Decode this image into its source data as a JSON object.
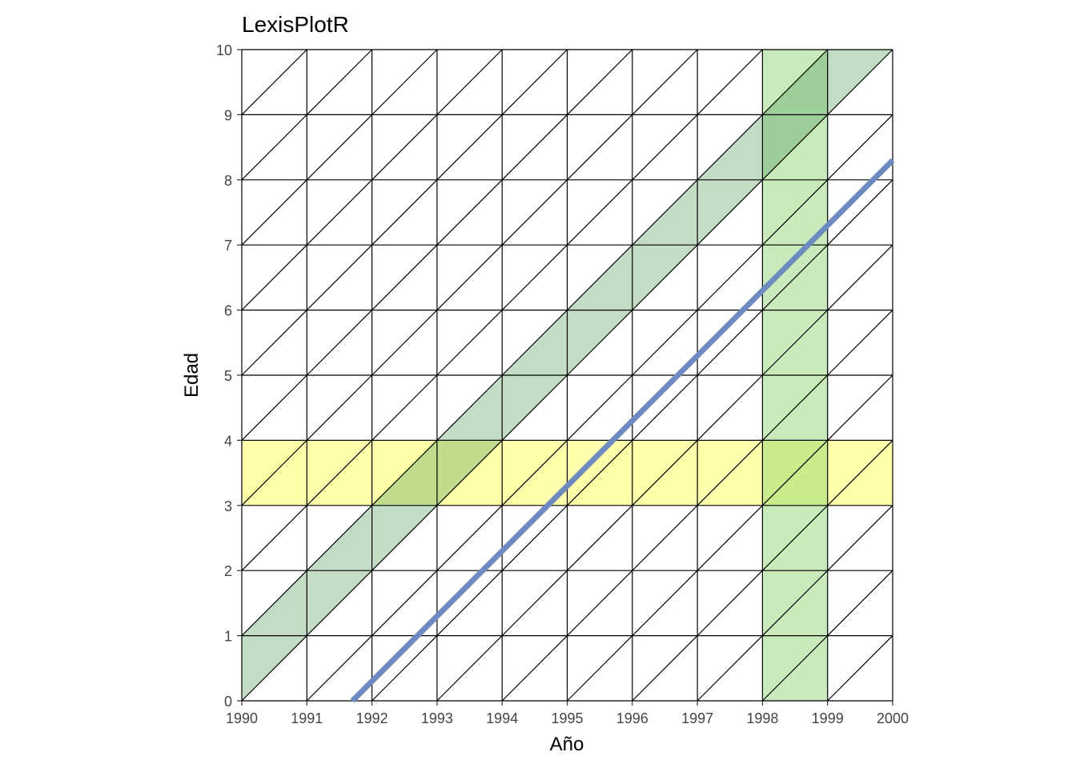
{
  "chart_data": {
    "type": "lexis",
    "title": "LexisPlotR",
    "xlabel": "Año",
    "ylabel": "Edad",
    "xlim": [
      1990,
      2000
    ],
    "ylim": [
      0,
      10
    ],
    "x_ticks": [
      "1990",
      "1991",
      "1992",
      "1993",
      "1994",
      "1995",
      "1996",
      "1997",
      "1998",
      "1999",
      "2000"
    ],
    "y_ticks": [
      "0",
      "1",
      "2",
      "3",
      "4",
      "5",
      "6",
      "7",
      "8",
      "9",
      "10"
    ],
    "grid": true,
    "highlights": {
      "age_band": {
        "from": 3,
        "to": 4,
        "color": "#ffff66",
        "opacity": 0.55
      },
      "year_band": {
        "from": 1998,
        "to": 1999,
        "color": "#7fcf5f",
        "opacity": 0.42
      },
      "cohort_band": {
        "from": 1989,
        "to": 1990,
        "color": "#4f9a5a",
        "opacity": 0.35
      }
    },
    "lifeline": {
      "entry_year": 1991.7,
      "entry_age": 0,
      "exit_year": 2000,
      "exit_age": 8.3,
      "color": "#6e8bc0"
    }
  }
}
